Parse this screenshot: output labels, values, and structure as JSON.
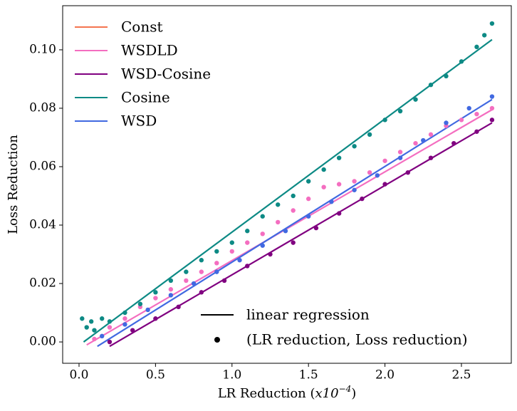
{
  "chart_data": {
    "type": "scatter",
    "xlabel": {
      "text": "LR Reduction (",
      "factor": "x10",
      "exponent": "−4",
      "close": ")"
    },
    "ylabel": "Loss Reduction",
    "xlim": [
      -0.107,
      2.826
    ],
    "ylim": [
      -0.0073,
      0.1151
    ],
    "xticks": [
      {
        "value": 0,
        "label": "0.0"
      },
      0.5,
      {
        "value": 1,
        "label": "1.0"
      },
      1.5,
      {
        "value": 2,
        "label": "2.0"
      },
      2.5
    ],
    "yticks": [
      {
        "value": 0,
        "label": "0.00"
      },
      {
        "value": 0.02,
        "label": "0.02"
      },
      {
        "value": 0.04,
        "label": "0.04"
      },
      {
        "value": 0.06,
        "label": "0.06"
      },
      {
        "value": 0.08,
        "label": "0.08"
      },
      {
        "value": 0.1,
        "label": "0.10"
      }
    ],
    "legend": "upper left",
    "annotations": {
      "line_legend": "linear regression",
      "point_legend": "(LR reduction, Loss reduction)"
    },
    "series": [
      {
        "name": "Const",
        "color": "#f4754f",
        "x": [],
        "values": []
      },
      {
        "name": "WSDLD",
        "color": "#f46ec0",
        "x": [
          0.1,
          0.2,
          0.3,
          0.4,
          0.5,
          0.6,
          0.7,
          0.8,
          0.9,
          1.0,
          1.1,
          1.2,
          1.3,
          1.4,
          1.5,
          1.6,
          1.7,
          1.8,
          1.9,
          2.0,
          2.1,
          2.2,
          2.3,
          2.4,
          2.5,
          2.6,
          2.7
        ],
        "values": [
          0.001,
          0.005,
          0.008,
          0.012,
          0.015,
          0.018,
          0.021,
          0.024,
          0.027,
          0.031,
          0.034,
          0.037,
          0.041,
          0.045,
          0.049,
          0.053,
          0.054,
          0.055,
          0.058,
          0.062,
          0.065,
          0.068,
          0.071,
          0.074,
          0.076,
          0.078,
          0.08
        ],
        "fit": {
          "x": [
            0.05,
            2.7
          ],
          "values": [
            -0.001,
            0.0795
          ]
        }
      },
      {
        "name": "WSD-Cosine",
        "color": "#800080",
        "x": [
          0.2,
          0.35,
          0.5,
          0.65,
          0.8,
          0.95,
          1.1,
          1.25,
          1.4,
          1.55,
          1.7,
          1.85,
          2.0,
          2.15,
          2.3,
          2.45,
          2.6,
          2.7
        ],
        "values": [
          0.0,
          0.004,
          0.008,
          0.012,
          0.017,
          0.021,
          0.026,
          0.03,
          0.034,
          0.039,
          0.044,
          0.049,
          0.054,
          0.058,
          0.063,
          0.068,
          0.072,
          0.076
        ],
        "fit": {
          "x": [
            0.2,
            2.7
          ],
          "values": [
            -0.0015,
            0.075
          ]
        }
      },
      {
        "name": "Cosine",
        "color": "#0d8a85",
        "x": [
          0.02,
          0.05,
          0.08,
          0.1,
          0.15,
          0.2,
          0.3,
          0.4,
          0.5,
          0.6,
          0.7,
          0.8,
          0.9,
          1.0,
          1.1,
          1.2,
          1.3,
          1.4,
          1.5,
          1.6,
          1.7,
          1.8,
          1.9,
          2.0,
          2.1,
          2.2,
          2.3,
          2.4,
          2.5,
          2.6,
          2.65,
          2.7
        ],
        "values": [
          0.008,
          0.005,
          0.007,
          0.004,
          0.008,
          0.007,
          0.01,
          0.013,
          0.017,
          0.021,
          0.024,
          0.028,
          0.031,
          0.034,
          0.038,
          0.043,
          0.047,
          0.05,
          0.055,
          0.059,
          0.063,
          0.067,
          0.071,
          0.076,
          0.079,
          0.083,
          0.088,
          0.091,
          0.096,
          0.101,
          0.105,
          0.109
        ],
        "fit": {
          "x": [
            0.03,
            2.7
          ],
          "values": [
            0.0,
            0.1035
          ]
        }
      },
      {
        "name": "WSD",
        "color": "#4169e1",
        "x": [
          0.15,
          0.3,
          0.45,
          0.6,
          0.75,
          0.9,
          1.05,
          1.2,
          1.35,
          1.5,
          1.65,
          1.8,
          1.95,
          2.1,
          2.25,
          2.4,
          2.55,
          2.7
        ],
        "values": [
          0.002,
          0.006,
          0.011,
          0.016,
          0.02,
          0.024,
          0.028,
          0.033,
          0.038,
          0.043,
          0.048,
          0.052,
          0.057,
          0.063,
          0.069,
          0.075,
          0.08,
          0.084
        ],
        "fit": {
          "x": [
            0.12,
            2.7
          ],
          "values": [
            -0.0015,
            0.083
          ]
        }
      }
    ]
  }
}
